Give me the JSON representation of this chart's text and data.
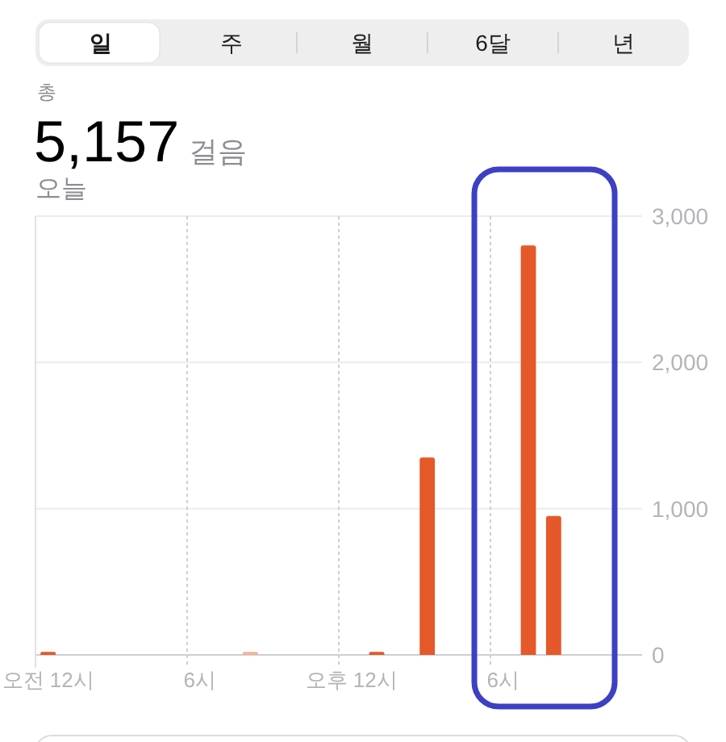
{
  "chart_data": {
    "type": "bar",
    "title": "5,157",
    "subtitle": "오늘",
    "annotations": [
      "일",
      "주",
      "월",
      "6달",
      "년",
      "총",
      "걸음"
    ],
    "categories": [
      "오전 12시",
      null,
      null,
      null,
      null,
      null,
      "6시",
      null,
      null,
      null,
      null,
      null,
      "오후 12시",
      null,
      null,
      null,
      null,
      null,
      "6시",
      null,
      null,
      null,
      null,
      null
    ],
    "values": [
      20,
      null,
      null,
      null,
      null,
      null,
      null,
      null,
      20,
      null,
      null,
      null,
      null,
      20,
      null,
      1350,
      null,
      null,
      null,
      2800,
      950,
      null,
      null,
      null
    ],
    "colors": [
      "#e5582a",
      null,
      null,
      null,
      null,
      null,
      null,
      null,
      "#f0b49c",
      null,
      null,
      null,
      null,
      "#e5582a",
      null,
      "#e5582a",
      null,
      null,
      null,
      "#e5582a",
      "#e5582a",
      null,
      null,
      null
    ],
    "ylim": [
      0,
      3000
    ],
    "yticks": [
      0,
      {
        "value": 1000,
        "label": "1,000"
      },
      {
        "value": 2000,
        "label": "2,000"
      },
      {
        "value": 3000,
        "label": "3,000"
      }
    ],
    "grid": true
  }
}
